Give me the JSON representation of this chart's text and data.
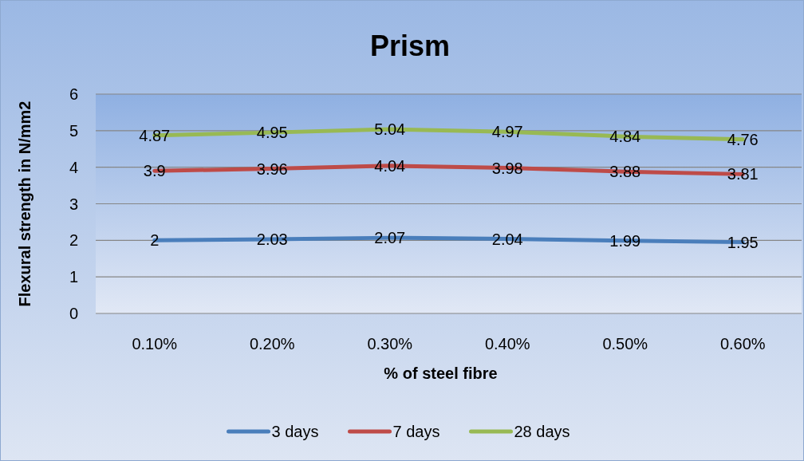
{
  "chart_data": {
    "type": "line",
    "title": "Prism",
    "xlabel": "% of steel fibre",
    "ylabel": "Flexural strength in N/mm2",
    "categories": [
      "0.10%",
      "0.20%",
      "0.30%",
      "0.40%",
      "0.50%",
      "0.60%"
    ],
    "series": [
      {
        "name": "3 days",
        "color": "#4a7ebb",
        "values": [
          2,
          2.03,
          2.07,
          2.04,
          1.99,
          1.95
        ]
      },
      {
        "name": "7 days",
        "color": "#be4b48",
        "values": [
          3.9,
          3.96,
          4.04,
          3.98,
          3.88,
          3.81
        ]
      },
      {
        "name": "28 days",
        "color": "#98b954",
        "values": [
          4.87,
          4.95,
          5.04,
          4.97,
          4.84,
          4.76
        ]
      }
    ],
    "ylim": [
      0,
      6
    ],
    "yticks": [
      0,
      1,
      2,
      3,
      4,
      5,
      6
    ],
    "grid": "y",
    "legend": "bottom",
    "data_labels": true,
    "marker": "none",
    "line_style": "solid"
  }
}
